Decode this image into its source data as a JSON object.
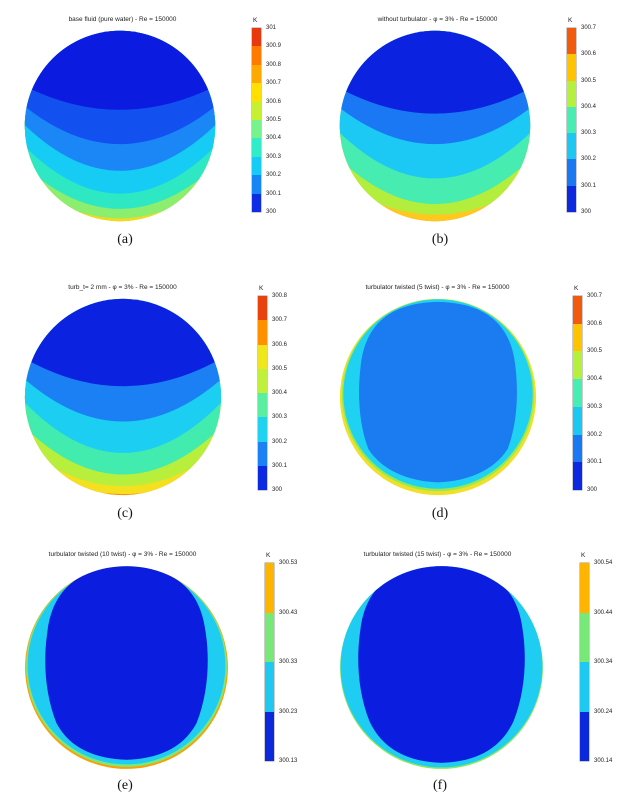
{
  "figure": {
    "colormap": "jet",
    "legend_position": "right",
    "subplots": [
      {
        "caption": "(a)",
        "title": "base fluid (pure water) -  Re = 150000",
        "colorbar": {
          "unit": "K",
          "ticks": [
            "301",
            "300.9",
            "300.8",
            "300.7",
            "300.6",
            "300.5",
            "300.4",
            "300.3",
            "300.2",
            "300.1",
            "300"
          ],
          "colors": [
            "#e8380e",
            "#ff7a00",
            "#ffa800",
            "#ffe000",
            "#c8f032",
            "#78f28c",
            "#30ecc8",
            "#16ccf4",
            "#1686f6",
            "#0e2ce4"
          ]
        }
      },
      {
        "caption": "(b)",
        "title": "without turbulator  -  φ = 3%  -  Re = 150000",
        "colorbar": {
          "unit": "K",
          "ticks": [
            "300.7",
            "300.6",
            "300.5",
            "300.4",
            "300.3",
            "300.2",
            "300.1",
            "300"
          ],
          "colors": [
            "#f25a0e",
            "#ffc300",
            "#b4f03c",
            "#46eeb4",
            "#1ac8f2",
            "#1a78f2",
            "#0c28e0"
          ]
        }
      },
      {
        "caption": "(c)",
        "title": "turb_t= 2 mm  -  φ = 3%  -  Re = 150000",
        "colorbar": {
          "unit": "K",
          "ticks": [
            "300.8",
            "300.7",
            "300.6",
            "300.5",
            "300.4",
            "300.3",
            "300.2",
            "300.1",
            "300"
          ],
          "colors": [
            "#e8420e",
            "#ff9000",
            "#f0e61e",
            "#c0f03c",
            "#5aeea0",
            "#1ed2f0",
            "#1a82f4",
            "#0c28e0"
          ]
        }
      },
      {
        "caption": "(d)",
        "title": "turbulator twisted (5 twist)  -  φ = 3%  -  Re = 150000",
        "colorbar": {
          "unit": "K",
          "ticks": [
            "300.7",
            "300.6",
            "300.5",
            "300.4",
            "300.3",
            "300.2",
            "300.1",
            "300"
          ],
          "colors": [
            "#f25a0e",
            "#ffc300",
            "#b4f03c",
            "#46eeb4",
            "#1ac8f2",
            "#1a78f2",
            "#0c28e0"
          ]
        }
      },
      {
        "caption": "(e)",
        "title": "turbulator twisted (10 twist)  -  φ = 3%  -  Re = 150000",
        "colorbar": {
          "unit": "K",
          "ticks": [
            "300.53",
            "300.43",
            "300.33",
            "300.23",
            "300.13"
          ],
          "colors": [
            "#ffb400",
            "#78e878",
            "#1ec8f0",
            "#0c28dc"
          ]
        }
      },
      {
        "caption": "(f)",
        "title": "turbulator twisted (15 twist)  -  φ = 3%  -  Re = 150000",
        "colorbar": {
          "unit": "K",
          "ticks": [
            "300.54",
            "300.44",
            "300.34",
            "300.24",
            "300.14"
          ],
          "colors": [
            "#ffb400",
            "#78e878",
            "#1ec8f0",
            "#0c28dc"
          ]
        }
      }
    ]
  },
  "chart_data": [
    {
      "type": "heatmap",
      "subplot": "(a)",
      "title": "base fluid (pure water) -  Re = 150000",
      "variable": "temperature",
      "unit": "K",
      "range": [
        300,
        301
      ],
      "colorbar_ticks": [
        301,
        300.9,
        300.8,
        300.7,
        300.6,
        300.5,
        300.4,
        300.3,
        300.2,
        300.1,
        300
      ],
      "pattern": "Circular pipe cross-section; cold dark-blue region (~300-300.1 K) covers top half, wavy horizontal bands warm downward through blue, cyan and teal to a thin yellow/orange rim (~301 K) at the bottom wall."
    },
    {
      "type": "heatmap",
      "subplot": "(b)",
      "title": "without turbulator  -  φ = 3%  -  Re = 150000",
      "variable": "temperature",
      "unit": "K",
      "range": [
        300,
        300.7
      ],
      "colorbar_ticks": [
        300.7,
        300.6,
        300.5,
        300.4,
        300.3,
        300.2,
        300.1,
        300
      ],
      "pattern": "Cold dark-blue core over the top, wavy stratified bands (blue, cyan, aqua-green) warming toward a thin gold/orange rim (~300.7 K) at the bottom wall."
    },
    {
      "type": "heatmap",
      "subplot": "(c)",
      "title": "turb_t= 2 mm  -  φ = 3%  -  Re = 150000",
      "variable": "temperature",
      "unit": "K",
      "range": [
        300,
        300.8
      ],
      "colorbar_ticks": [
        300.8,
        300.7,
        300.6,
        300.5,
        300.4,
        300.3,
        300.2,
        300.1,
        300
      ],
      "pattern": "Cold dark-blue top region with strongly dipping wavy bands (blue, cyan, aqua, green, yellow) warming to an orange rim (~300.8 K) along the bottom wall."
    },
    {
      "type": "heatmap",
      "subplot": "(d)",
      "title": "turbulator twisted (5 twist)  -  φ = 3%  -  Re = 150000",
      "variable": "temperature",
      "unit": "K",
      "range": [
        300,
        300.7
      ],
      "colorbar_ticks": [
        300.7,
        300.6,
        300.5,
        300.4,
        300.3,
        300.2,
        300.1,
        300
      ],
      "pattern": "Nearly uniform medium-blue core (~300.2 K) fills the section; thin cyan band with green/yellow slivers hugs the left, right and bottom walls."
    },
    {
      "type": "heatmap",
      "subplot": "(e)",
      "title": "turbulator twisted (10 twist)  -  φ = 3%  -  Re = 150000",
      "variable": "temperature",
      "unit": "K",
      "range": [
        300.13,
        300.53
      ],
      "colorbar_ticks": [
        300.53,
        300.43,
        300.33,
        300.23,
        300.13
      ],
      "pattern": "Uniform cold dark-blue core (~300.13-300.23 K) with a very thin cyan/green/orange rim along the side and bottom walls."
    },
    {
      "type": "heatmap",
      "subplot": "(f)",
      "title": "turbulator twisted (15 twist)  -  φ = 3%  -  Re = 150000",
      "variable": "temperature",
      "unit": "K",
      "range": [
        300.14,
        300.54
      ],
      "colorbar_ticks": [
        300.54,
        300.44,
        300.34,
        300.24,
        300.14
      ],
      "pattern": "Uniform cold dark-blue core with the thinnest cyan/green rim at the wall, indicating the most homogeneous temperature field."
    }
  ]
}
